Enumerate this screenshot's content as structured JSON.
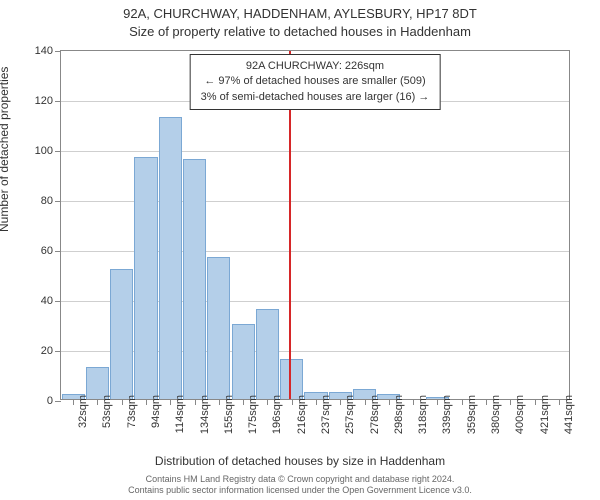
{
  "chart": {
    "type": "histogram",
    "title_main": "92A, CHURCHWAY, HADDENHAM, AYLESBURY, HP17 8DT",
    "title_sub": "Size of property relative to detached houses in Haddenham",
    "y_axis_title": "Number of detached properties",
    "x_axis_title": "Distribution of detached houses by size in Haddenham",
    "ylim": [
      0,
      140
    ],
    "ytick_step": 20,
    "yticks": [
      0,
      20,
      40,
      60,
      80,
      100,
      120,
      140
    ],
    "bar_color": "#b4cfe9",
    "bar_border_color": "#7ba8d4",
    "background_color": "#ffffff",
    "grid_color": "#888888",
    "marker_color": "#d62728",
    "marker_position": 9.4,
    "x_labels": [
      "32sqm",
      "53sqm",
      "73sqm",
      "94sqm",
      "114sqm",
      "134sqm",
      "155sqm",
      "175sqm",
      "196sqm",
      "216sqm",
      "237sqm",
      "257sqm",
      "278sqm",
      "298sqm",
      "318sqm",
      "339sqm",
      "359sqm",
      "380sqm",
      "400sqm",
      "421sqm",
      "441sqm"
    ],
    "values": [
      2,
      13,
      52,
      97,
      113,
      96,
      57,
      30,
      36,
      16,
      3,
      3,
      4,
      2,
      0,
      1,
      0,
      0,
      0,
      0,
      0
    ],
    "annotation": {
      "line1": "92A CHURCHWAY: 226sqm",
      "line2": "← 97% of detached houses are smaller (509)",
      "line3": "3% of semi-detached houses are larger (16) →"
    },
    "footer_line1": "Contains HM Land Registry data © Crown copyright and database right 2024.",
    "footer_line2": "Contains public sector information licensed under the Open Government Licence v3.0.",
    "font_family": "Arial, sans-serif",
    "title_fontsize": 13,
    "label_fontsize": 11,
    "axis_title_fontsize": 12,
    "footer_fontsize": 9
  }
}
